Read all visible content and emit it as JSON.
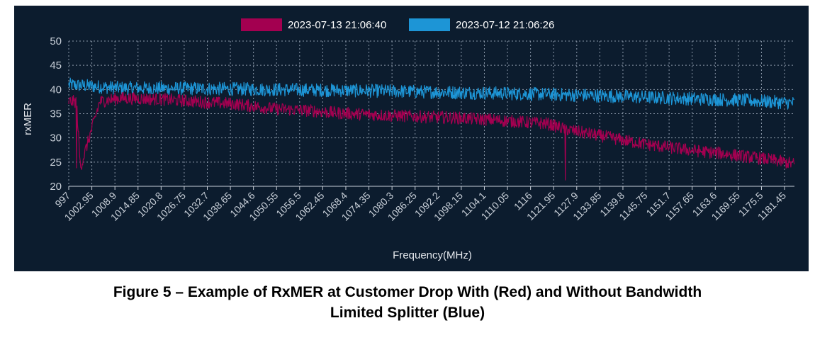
{
  "chart_data": {
    "type": "line",
    "xlabel": "Frequency(MHz)",
    "ylabel": "rxMER",
    "ylim": [
      20,
      50
    ],
    "yticks": [
      20,
      25,
      30,
      35,
      40,
      45,
      50
    ],
    "xlim": [
      997,
      1184
    ],
    "xtick_labels": [
      "997",
      "1002.95",
      "1008.9",
      "1014.85",
      "1020.8",
      "1026.75",
      "1032.7",
      "1038.65",
      "1044.6",
      "1050.55",
      "1056.5",
      "1062.45",
      "1068.4",
      "1074.35",
      "1080.3",
      "1086.25",
      "1092.2",
      "1098.15",
      "1104.1",
      "1110.05",
      "1116",
      "1121.95",
      "1127.9",
      "1133.85",
      "1139.8",
      "1145.75",
      "1151.7",
      "1157.65",
      "1163.6",
      "1169.55",
      "1175.5",
      "1181.45"
    ],
    "grid": true,
    "legend_position": "top-center",
    "background": "#0c1c2e",
    "series": [
      {
        "name": "2023-07-13 21:06:40",
        "color": "#a30050",
        "x": [
          997,
          999,
          1000,
          1005,
          1010,
          1020,
          1030,
          1040,
          1045,
          1050,
          1055,
          1060,
          1065,
          1070,
          1075,
          1080,
          1085,
          1090,
          1095,
          1100,
          1105,
          1110,
          1115,
          1120,
          1125,
          1130,
          1135,
          1140,
          1145,
          1150,
          1155,
          1160,
          1165,
          1170,
          1175,
          1180,
          1184
        ],
        "values": [
          37.5,
          37.5,
          23.8,
          37.5,
          38.2,
          38,
          37.5,
          37,
          36.5,
          36,
          35.8,
          35.6,
          35.2,
          35,
          34.8,
          34.6,
          34.5,
          34.3,
          34.2,
          34,
          33.8,
          33.5,
          33.2,
          33,
          31.8,
          31,
          30.3,
          29.5,
          28.8,
          28.2,
          27.7,
          27.2,
          26.8,
          26.3,
          25.8,
          25.2,
          24.6
        ],
        "noise": 1.3,
        "dips": [
          [
            999,
            23.8
          ],
          [
            1125,
            21.3
          ]
        ]
      },
      {
        "name": "2023-07-12 21:06:26",
        "color": "#1d95d6",
        "x": [
          997,
          1010,
          1030,
          1050,
          1070,
          1090,
          1110,
          1130,
          1150,
          1170,
          1184
        ],
        "values": [
          41,
          40.3,
          40.2,
          40,
          39.8,
          39.5,
          39.2,
          38.8,
          38.3,
          37.8,
          37.2
        ],
        "noise": 1.4,
        "dips": []
      }
    ]
  },
  "caption": {
    "line1": "Figure 5 – Example of RxMER at Customer Drop With (Red) and Without Bandwidth",
    "line2": "Limited Splitter (Blue)"
  }
}
